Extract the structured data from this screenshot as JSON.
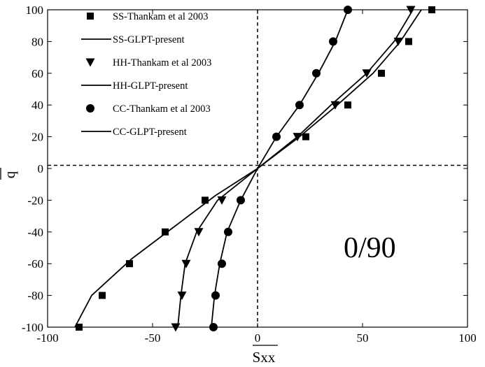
{
  "chart_data": {
    "type": "line",
    "xlabel": "Sxx",
    "ylabel": "q",
    "xlim": [
      -100,
      100
    ],
    "ylim": [
      -100,
      100
    ],
    "xticks": [
      -100,
      -50,
      0,
      50,
      100
    ],
    "yticks": [
      -100,
      -80,
      -60,
      -40,
      -20,
      0,
      20,
      40,
      60,
      80,
      100
    ],
    "annotation": "0/90",
    "grid": false,
    "legend_position": "top-left",
    "reference_lines": {
      "x": 0,
      "y": 2
    },
    "series": [
      {
        "name": "SS-Thankam et al 2003",
        "kind": "markers",
        "marker": "square",
        "x": [
          -85,
          -74,
          -61,
          -44,
          -25,
          23,
          43,
          59,
          72,
          83
        ],
        "y": [
          -100,
          -80,
          -60,
          -40,
          -20,
          20,
          40,
          60,
          80,
          100
        ]
      },
      {
        "name": "SS-GLPT-present",
        "kind": "line",
        "x": [
          -87,
          -79,
          -60,
          -40,
          -20,
          0,
          20,
          38,
          55,
          68,
          78
        ],
        "y": [
          -100,
          -80,
          -57,
          -37,
          -17,
          0,
          20,
          40,
          60,
          80,
          100
        ]
      },
      {
        "name": "HH-Thankam et al 2003",
        "kind": "markers",
        "marker": "triangle-down",
        "x": [
          -39,
          -36,
          -34,
          -28,
          -17,
          19,
          37,
          52,
          67,
          73
        ],
        "y": [
          -100,
          -80,
          -60,
          -40,
          -20,
          20,
          40,
          60,
          80,
          100
        ]
      },
      {
        "name": "HH-GLPT-present",
        "kind": "line",
        "x": [
          -38,
          -36.5,
          -34.5,
          -29,
          -19,
          0,
          19,
          35,
          52,
          65,
          74
        ],
        "y": [
          -100,
          -80,
          -60,
          -40,
          -20,
          0,
          20,
          40,
          60,
          80,
          100
        ]
      },
      {
        "name": "CC-Thankam et al 2003",
        "kind": "markers",
        "marker": "circle",
        "x": [
          -21,
          -20,
          -17,
          -14,
          -8,
          9,
          20,
          28,
          36,
          43
        ],
        "y": [
          -100,
          -80,
          -60,
          -40,
          -20,
          20,
          40,
          60,
          80,
          100
        ]
      },
      {
        "name": "CC-GLPT-present",
        "kind": "line",
        "x": [
          -22,
          -20.5,
          -18,
          -14.5,
          -8,
          0,
          9,
          20,
          29,
          37,
          43
        ],
        "y": [
          -100,
          -80,
          -60,
          -40,
          -20,
          0,
          20,
          40,
          60,
          80,
          100
        ]
      }
    ]
  }
}
